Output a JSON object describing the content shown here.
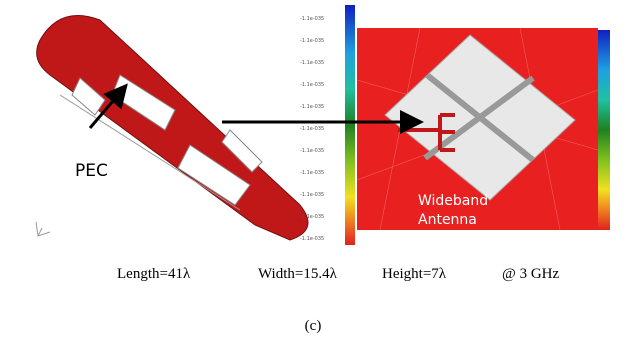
{
  "labels": {
    "pec": "PEC",
    "antenna_line1": "Wideband",
    "antenna_line2": "Antenna"
  },
  "colorbar_labels": [
    "-1.1e-035",
    "-1.1e-035",
    "-1.1e-035",
    "-1.1e-035",
    "-1.1e-035",
    "-1.1e-035",
    "-1.1e-035",
    "-1.1e-035",
    "-1.1e-035",
    "-1.1e-035",
    "-1.1e-035"
  ],
  "caption": {
    "length": "Length=41λ",
    "width": "Width=15.4λ",
    "height": "Height=7λ",
    "frequency": "@ 3 GHz",
    "panel": "(c)"
  }
}
